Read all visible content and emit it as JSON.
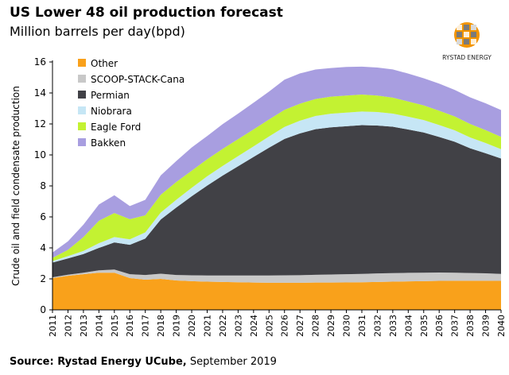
{
  "title": "US Lower 48 oil production forecast",
  "subtitle": "Million barrels per day(bpd)",
  "logo": {
    "text": "RYSTAD ENERGY",
    "colors": [
      "#f29400",
      "#7a7a7a",
      "#d9d9d9"
    ]
  },
  "source": {
    "bold": "Source: Rystad Energy UCube,",
    "rest": " September 2019"
  },
  "chart_data": {
    "type": "area",
    "stacked": true,
    "ylabel": "Crude oil and field condensate production",
    "xlabel": "",
    "ylim": [
      0,
      16
    ],
    "yticks": [
      0,
      2,
      4,
      6,
      8,
      10,
      12,
      14,
      16
    ],
    "grid": false,
    "legend_position": "top-left",
    "x": [
      "2011",
      "2012",
      "2013",
      "2014",
      "2015",
      "2016",
      "2017",
      "2018",
      "2019",
      "2020",
      "2021",
      "2022",
      "2023",
      "2024",
      "2025",
      "2026",
      "2027",
      "2028",
      "2029",
      "2030",
      "2031",
      "2032",
      "2033",
      "2034",
      "2035",
      "2036",
      "2037",
      "2038",
      "2039",
      "2040"
    ],
    "series": [
      {
        "name": "Other",
        "color": "#f9a11b",
        "values": [
          2.05,
          2.2,
          2.3,
          2.4,
          2.4,
          2.05,
          1.95,
          2.0,
          1.9,
          1.85,
          1.82,
          1.8,
          1.78,
          1.76,
          1.75,
          1.75,
          1.75,
          1.76,
          1.76,
          1.77,
          1.78,
          1.8,
          1.82,
          1.84,
          1.85,
          1.87,
          1.88,
          1.88,
          1.88,
          1.87
        ]
      },
      {
        "name": "SCOOP-STACK-Cana",
        "color": "#c8c8c8",
        "values": [
          0.05,
          0.07,
          0.1,
          0.15,
          0.2,
          0.25,
          0.3,
          0.33,
          0.35,
          0.38,
          0.4,
          0.42,
          0.44,
          0.46,
          0.47,
          0.48,
          0.49,
          0.5,
          0.52,
          0.53,
          0.54,
          0.55,
          0.55,
          0.55,
          0.55,
          0.54,
          0.52,
          0.5,
          0.48,
          0.45
        ]
      },
      {
        "name": "Permian",
        "color": "#414146",
        "values": [
          0.95,
          1.05,
          1.2,
          1.45,
          1.75,
          1.9,
          2.35,
          3.5,
          4.35,
          5.1,
          5.8,
          6.45,
          7.05,
          7.65,
          8.25,
          8.8,
          9.15,
          9.4,
          9.5,
          9.55,
          9.6,
          9.55,
          9.45,
          9.25,
          9.05,
          8.75,
          8.45,
          8.05,
          7.75,
          7.45
        ]
      },
      {
        "name": "Niobrara",
        "color": "#c6e6f5",
        "values": [
          0.1,
          0.15,
          0.2,
          0.3,
          0.35,
          0.35,
          0.4,
          0.45,
          0.5,
          0.55,
          0.6,
          0.62,
          0.65,
          0.68,
          0.72,
          0.78,
          0.82,
          0.85,
          0.88,
          0.88,
          0.88,
          0.87,
          0.85,
          0.83,
          0.8,
          0.77,
          0.74,
          0.7,
          0.66,
          0.6
        ]
      },
      {
        "name": "Eagle Ford",
        "color": "#c3f232",
        "values": [
          0.2,
          0.4,
          0.9,
          1.45,
          1.55,
          1.3,
          1.1,
          1.15,
          1.15,
          1.1,
          1.1,
          1.1,
          1.1,
          1.1,
          1.1,
          1.1,
          1.1,
          1.1,
          1.1,
          1.1,
          1.1,
          1.06,
          1.03,
          0.98,
          0.95,
          0.92,
          0.9,
          0.87,
          0.83,
          0.8
        ]
      },
      {
        "name": "Bakken",
        "color": "#a89ee0",
        "values": [
          0.35,
          0.55,
          0.8,
          1.05,
          1.15,
          0.85,
          1.0,
          1.25,
          1.35,
          1.5,
          1.5,
          1.6,
          1.65,
          1.72,
          1.8,
          1.95,
          1.95,
          1.9,
          1.85,
          1.85,
          1.8,
          1.81,
          1.82,
          1.8,
          1.75,
          1.75,
          1.71,
          1.72,
          1.73,
          1.73
        ]
      }
    ]
  }
}
